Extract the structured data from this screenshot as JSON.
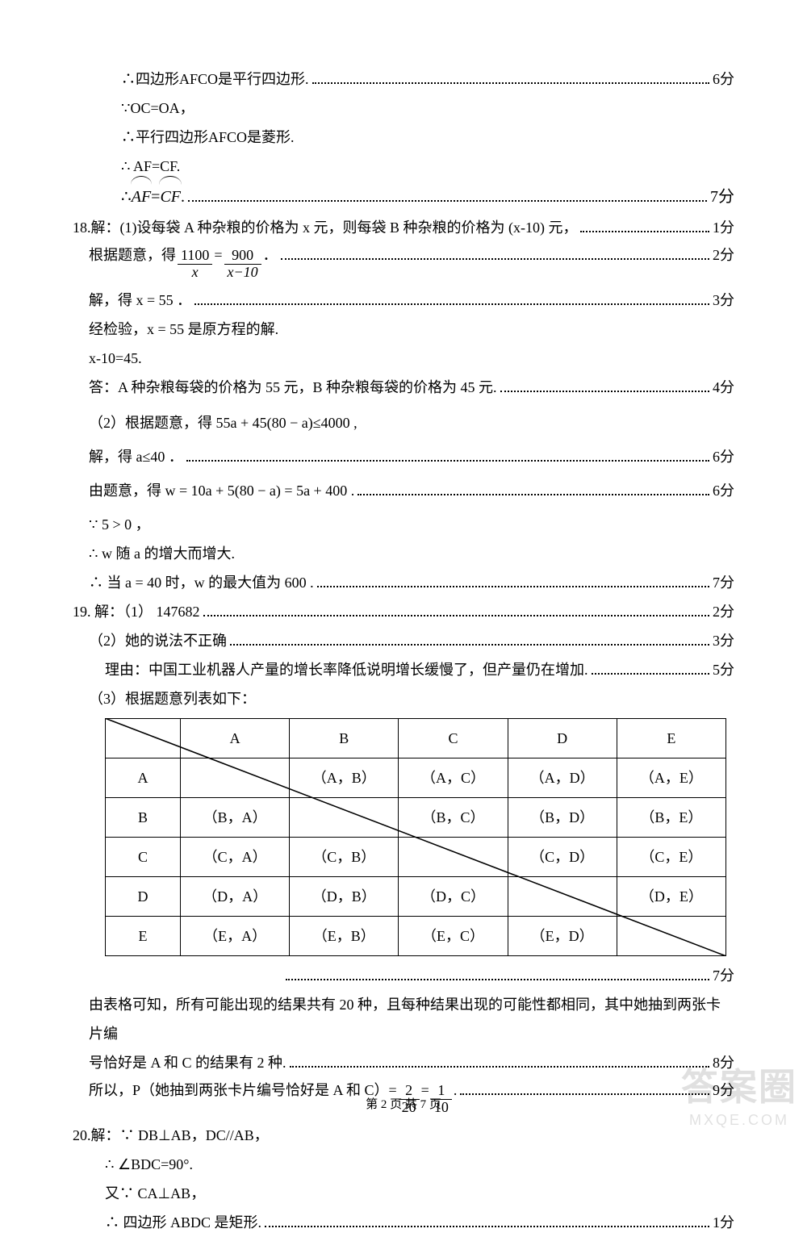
{
  "l1": {
    "text": "∴四边形AFCO是平行四边形.",
    "score": "6分"
  },
  "l2": {
    "text": "∵OC=OA，"
  },
  "l3": {
    "text": "∴平行四边形AFCO是菱形."
  },
  "l4": {
    "text": "∴ AF=CF."
  },
  "l5": {
    "prefix": "∴ ",
    "af": "AF",
    "eq": " = ",
    "cf": "CF",
    "tail": ".",
    "score": "7分"
  },
  "l6": {
    "text": "18.解：(1)设每袋 A 种杂粮的价格为 x 元，则每袋 B 种杂粮的价格为 (x-10) 元，",
    "score": "1分"
  },
  "l7": {
    "prefix": "根据题意，得",
    "num1": "1100",
    "den1": "x",
    "eq": " = ",
    "num2": "900",
    "den2": "x−10",
    "tail": " ．",
    "score": "2分"
  },
  "l8": {
    "text": "解，得 x = 55 ．",
    "score": "3分"
  },
  "l9": {
    "text": "经检验，x = 55 是原方程的解."
  },
  "l10": {
    "text": "x-10=45."
  },
  "l11": {
    "text": "答：A 种杂粮每袋的价格为 55 元，B 种杂粮每袋的价格为 45 元.",
    "score": "4分"
  },
  "l12": {
    "text": "（2）根据题意，得  55a + 45(80 − a)≤4000 ,"
  },
  "l13": {
    "text": "解，得 a≤40 ．",
    "score": "6分"
  },
  "l14": {
    "text": "由题意，得 w = 10a + 5(80 − a) = 5a + 400 .",
    "score": "6分"
  },
  "l15": {
    "text": "∵ 5 > 0 ，"
  },
  "l16": {
    "text": "∴ w 随 a 的增大而增大."
  },
  "l17": {
    "text": "∴ 当 a = 40 时，w 的最大值为 600 .",
    "score": "7分"
  },
  "l18": {
    "text": "19. 解：（1） 147682",
    "score": "2分"
  },
  "l19": {
    "text": "（2）她的说法不正确",
    "score": "3分"
  },
  "l20": {
    "text": "理由：中国工业机器人产量的增长率降低说明增长缓慢了，但产量仍在增加.",
    "score": "5分"
  },
  "l21": {
    "text": "（3）根据题意列表如下："
  },
  "table": {
    "headers": [
      "",
      "A",
      "B",
      "C",
      "D",
      "E"
    ],
    "rows": [
      [
        "A",
        "",
        "（A，B）",
        "（A，C）",
        "（A，D）",
        "（A，E）"
      ],
      [
        "B",
        "（B，A）",
        "",
        "（B，C）",
        "（B，D）",
        "（B，E）"
      ],
      [
        "C",
        "（C，A）",
        "（C，B）",
        "",
        "（C，D）",
        "（C，E）"
      ],
      [
        "D",
        "（D，A）",
        "（D，B）",
        "（D，C）",
        "",
        "（D，E）"
      ],
      [
        "E",
        "（E，A）",
        "（E，B）",
        "（E，C）",
        "（E，D）",
        ""
      ]
    ]
  },
  "l22": {
    "text": "",
    "score": "7分"
  },
  "l23": {
    "text": "由表格可知，所有可能出现的结果共有 20 种，且每种结果出现的可能性都相同，其中她抽到两张卡片编"
  },
  "l24": {
    "text": "号恰好是 A 和 C 的结果有 2 种.",
    "score": "8分"
  },
  "l25": {
    "prefix": "所以，P（她抽到两张卡片编号恰好是 A 和 C）= ",
    "n1": "2",
    "d1": "20",
    "eq": " = ",
    "n2": "1",
    "d2": "10",
    "tail": ".",
    "score": "9分"
  },
  "l26": {
    "text": "20.解：∵ DB⊥AB，DC//AB，"
  },
  "l27": {
    "text": "∴ ∠BDC=90°."
  },
  "l28": {
    "text": "又∵ CA⊥AB，"
  },
  "l29": {
    "text": "∴ 四边形 ABDC 是矩形.",
    "score": "1分"
  },
  "footer": {
    "text": "第 2 页 共 7 页"
  },
  "watermark": {
    "big": "答案圈",
    "small": "MXQE.COM"
  },
  "colors": {
    "text": "#000000",
    "bg": "#ffffff"
  }
}
